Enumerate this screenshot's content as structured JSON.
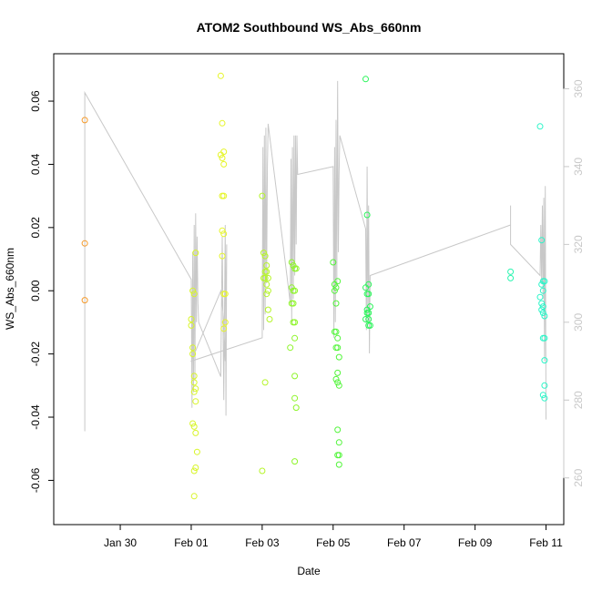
{
  "chart_data": {
    "type": "scatter",
    "title": "ATOM2 Southbound WS_Abs_660nm",
    "xlabel": "Date",
    "ylabel": "WS_Abs_660nm",
    "xlim": [
      "2023-01-28T03:00",
      "2023-02-11T12:00"
    ],
    "ylim": [
      -0.074,
      0.075
    ],
    "y2lim": [
      248,
      369
    ],
    "x_ticks": [
      {
        "date": "2023-01-30",
        "label": "Jan 30"
      },
      {
        "date": "2023-02-01",
        "label": "Feb 01"
      },
      {
        "date": "2023-02-03",
        "label": "Feb 03"
      },
      {
        "date": "2023-02-05",
        "label": "Feb 05"
      },
      {
        "date": "2023-02-07",
        "label": "Feb 07"
      },
      {
        "date": "2023-02-09",
        "label": "Feb 09"
      },
      {
        "date": "2023-02-11",
        "label": "Feb 11"
      }
    ],
    "y_ticks": [
      -0.06,
      -0.04,
      -0.02,
      0.0,
      0.02,
      0.04,
      0.06
    ],
    "y_tick_labels": [
      "-0.06",
      "-0.04",
      "-0.02",
      "0.00",
      "0.02",
      "0.04",
      "0.06"
    ],
    "y2_ticks": [
      260,
      280,
      300,
      320,
      340,
      360
    ],
    "y2_tick_labels": [
      "260",
      "280",
      "300",
      "320",
      "340",
      "360"
    ],
    "grid": false,
    "legend": "none",
    "point_series": [
      {
        "color": "#f59a2a",
        "x": [
          "2023-01-29T00:00",
          "2023-01-29T00:00",
          "2023-01-29T00:00"
        ],
        "y": [
          0.054,
          0.015,
          -0.003
        ]
      },
      {
        "color": "#d8f52a",
        "x": [
          "2023-02-01T00:00",
          "2023-02-01T00:00",
          "2023-02-01T01:00",
          "2023-02-01T01:00",
          "2023-02-01T02:00",
          "2023-02-01T02:00",
          "2023-02-01T03:00",
          "2023-02-01T02:00",
          "2023-02-01T03:00",
          "2023-02-01T01:00",
          "2023-02-01T02:00",
          "2023-02-01T03:00",
          "2023-02-01T04:00",
          "2023-02-01T03:00",
          "2023-02-01T02:00",
          "2023-02-01T02:00",
          "2023-02-01T01:00",
          "2023-02-01T02:00",
          "2023-02-01T03:00"
        ],
        "y": [
          -0.009,
          -0.011,
          -0.018,
          -0.02,
          -0.027,
          -0.029,
          -0.031,
          -0.032,
          -0.035,
          -0.042,
          -0.043,
          -0.045,
          -0.051,
          -0.056,
          -0.057,
          -0.065,
          0.0,
          -0.001,
          0.012
        ]
      },
      {
        "color": "#e6f52a",
        "x": [
          "2023-02-01T20:00",
          "2023-02-01T21:00",
          "2023-02-01T22:00",
          "2023-02-01T20:00",
          "2023-02-01T21:00",
          "2023-02-01T22:00",
          "2023-02-01T21:00",
          "2023-02-01T22:00",
          "2023-02-01T21:00",
          "2023-02-01T22:00",
          "2023-02-01T21:00",
          "2023-02-01T22:00",
          "2023-02-01T23:00",
          "2023-02-01T23:00",
          "2023-02-01T22:00"
        ],
        "y": [
          0.068,
          0.053,
          0.044,
          0.043,
          0.042,
          0.04,
          0.03,
          0.03,
          0.019,
          0.018,
          0.011,
          -0.001,
          -0.001,
          -0.01,
          -0.012
        ]
      },
      {
        "color": "#b6f52a",
        "x": [
          "2023-02-03T00:00",
          "2023-02-03T01:00",
          "2023-02-03T02:00",
          "2023-02-03T03:00",
          "2023-02-03T02:00",
          "2023-02-03T03:00",
          "2023-02-03T04:00",
          "2023-02-03T02:00",
          "2023-02-03T03:00",
          "2023-02-03T04:00",
          "2023-02-03T05:00",
          "2023-02-03T03:00",
          "2023-02-03T04:00",
          "2023-02-03T02:00",
          "2023-02-03T00:00",
          "2023-02-03T01:00"
        ],
        "y": [
          0.03,
          0.012,
          0.011,
          0.008,
          0.006,
          0.006,
          0.004,
          0.004,
          0.002,
          -0.006,
          -0.009,
          -0.001,
          0.0,
          -0.029,
          -0.057,
          0.004
        ]
      },
      {
        "color": "#8ef52a",
        "x": [
          "2023-02-03T20:00",
          "2023-02-03T21:00",
          "2023-02-03T22:00",
          "2023-02-03T23:00",
          "2023-02-03T20:00",
          "2023-02-03T21:00",
          "2023-02-03T22:00",
          "2023-02-03T20:00",
          "2023-02-03T21:00",
          "2023-02-03T22:00",
          "2023-02-03T21:00",
          "2023-02-03T22:00",
          "2023-02-03T19:00",
          "2023-02-03T22:00",
          "2023-02-03T22:00",
          "2023-02-03T23:00",
          "2023-02-03T22:00"
        ],
        "y": [
          0.009,
          0.008,
          0.007,
          0.007,
          0.001,
          0.0,
          0.0,
          -0.004,
          -0.004,
          -0.01,
          -0.01,
          -0.015,
          -0.018,
          -0.027,
          -0.034,
          -0.037,
          -0.054
        ]
      },
      {
        "color": "#52f53a",
        "x": [
          "2023-02-05T00:00",
          "2023-02-05T01:00",
          "2023-02-05T02:00",
          "2023-02-05T03:00",
          "2023-02-05T01:00",
          "2023-02-05T02:00",
          "2023-02-05T01:00",
          "2023-02-05T02:00",
          "2023-02-05T03:00",
          "2023-02-05T02:00",
          "2023-02-05T03:00",
          "2023-02-05T04:00",
          "2023-02-05T03:00",
          "2023-02-05T02:00",
          "2023-02-05T03:00",
          "2023-02-05T04:00",
          "2023-02-05T03:00",
          "2023-02-05T04:00",
          "2023-02-05T03:00",
          "2023-02-05T04:00",
          "2023-02-05T04:00"
        ],
        "y": [
          0.009,
          0.002,
          0.001,
          0.003,
          0.0,
          -0.004,
          -0.013,
          -0.013,
          -0.015,
          -0.018,
          -0.018,
          -0.021,
          -0.026,
          -0.028,
          -0.029,
          -0.03,
          -0.044,
          -0.048,
          -0.052,
          -0.055,
          -0.052
        ]
      },
      {
        "color": "#2af55a",
        "x": [
          "2023-02-05T22:00",
          "2023-02-05T23:00",
          "2023-02-06T00:00",
          "2023-02-05T22:00",
          "2023-02-05T23:00",
          "2023-02-06T00:00",
          "2023-02-06T01:00",
          "2023-02-05T23:00",
          "2023-02-06T00:00",
          "2023-02-05T23:00",
          "2023-02-06T00:00",
          "2023-02-05T22:00",
          "2023-02-06T00:00",
          "2023-02-06T01:00"
        ],
        "y": [
          0.067,
          0.024,
          0.002,
          0.001,
          -0.001,
          -0.001,
          -0.005,
          -0.006,
          -0.007,
          -0.007,
          -0.009,
          -0.009,
          -0.011,
          -0.011
        ]
      },
      {
        "color": "#2af5b0",
        "x": [
          "2023-02-10T00:00",
          "2023-02-10T00:00"
        ],
        "y": [
          0.006,
          0.004
        ]
      },
      {
        "color": "#2af5c8",
        "x": [
          "2023-02-10T20:00",
          "2023-02-10T21:00",
          "2023-02-10T22:00",
          "2023-02-10T21:00",
          "2023-02-10T22:00",
          "2023-02-10T20:00",
          "2023-02-10T21:00",
          "2023-02-10T22:00",
          "2023-02-10T21:00",
          "2023-02-10T22:00",
          "2023-02-10T23:00",
          "2023-02-10T22:00",
          "2023-02-10T23:00",
          "2023-02-10T23:00",
          "2023-02-10T22:00",
          "2023-02-10T23:00",
          "2023-02-10T23:00",
          "2023-02-10T23:00"
        ],
        "y": [
          0.052,
          0.016,
          0.003,
          0.002,
          0.0,
          -0.002,
          -0.004,
          -0.005,
          -0.006,
          -0.007,
          -0.008,
          -0.015,
          -0.022,
          -0.03,
          -0.033,
          -0.034,
          0.003,
          -0.015
        ]
      }
    ],
    "line_series": {
      "axis": "right",
      "color": "#c8c8c8",
      "x": [
        "2023-01-29T00:00",
        "2023-01-29T00:00",
        "2023-01-29T00:00",
        "2023-02-01T00:00",
        "2023-02-01T00:30",
        "2023-02-01T01:00",
        "2023-02-01T01:30",
        "2023-02-01T02:00",
        "2023-02-01T02:30",
        "2023-02-01T03:00",
        "2023-02-01T03:30",
        "2023-02-01T04:00",
        "2023-02-01T04:30",
        "2023-02-01T05:00",
        "2023-02-01T20:00",
        "2023-02-01T21:00",
        "2023-02-01T22:00",
        "2023-02-01T23:00",
        "2023-02-01T23:30",
        "2023-02-02T00:00",
        "2023-02-01T23:00",
        "2023-02-01T22:00",
        "2023-02-01T21:00",
        "2023-02-01T20:00",
        "2023-02-01T00:00",
        "2023-02-03T00:00",
        "2023-02-03T00:30",
        "2023-02-03T01:00",
        "2023-02-03T01:30",
        "2023-02-03T02:00",
        "2023-02-03T02:30",
        "2023-02-03T03:00",
        "2023-02-03T03:30",
        "2023-02-03T04:00",
        "2023-02-03T19:00",
        "2023-02-03T19:30",
        "2023-02-03T20:00",
        "2023-02-03T20:30",
        "2023-02-03T21:00",
        "2023-02-03T21:30",
        "2023-02-03T22:00",
        "2023-02-03T22:30",
        "2023-02-03T23:00",
        "2023-02-03T23:30",
        "2023-02-04T00:00",
        "2023-02-05T00:00",
        "2023-02-05T00:30",
        "2023-02-05T01:00",
        "2023-02-05T01:30",
        "2023-02-05T02:00",
        "2023-02-05T02:30",
        "2023-02-05T03:00",
        "2023-02-05T03:30",
        "2023-02-05T04:00",
        "2023-02-05T04:30",
        "2023-02-05T22:00",
        "2023-02-05T22:30",
        "2023-02-05T23:00",
        "2023-02-05T23:30",
        "2023-02-06T00:00",
        "2023-02-06T00:30",
        "2023-02-06T01:00",
        "2023-02-10T00:00",
        "2023-02-10T00:00",
        "2023-02-10T00:00",
        "2023-02-10T20:00",
        "2023-02-10T20:30",
        "2023-02-10T21:00",
        "2023-02-10T21:30",
        "2023-02-10T22:00",
        "2023-02-10T22:30",
        "2023-02-10T23:00",
        "2023-02-10T23:30",
        "2023-02-11T00:00"
      ],
      "y": [
        358,
        272,
        359,
        311,
        278,
        318,
        282,
        325,
        285,
        328,
        300,
        322,
        305,
        300,
        286,
        322,
        280,
        325,
        276,
        320,
        290,
        300,
        305,
        308,
        290,
        296,
        345,
        298,
        348,
        302,
        350,
        310,
        340,
        351,
        305,
        342,
        300,
        345,
        306,
        348,
        312,
        348,
        320,
        348,
        338,
        340,
        296,
        345,
        300,
        352,
        310,
        362,
        318,
        338,
        348,
        324,
        298,
        340,
        300,
        330,
        292,
        312,
        325,
        330,
        320,
        312,
        325,
        310,
        330,
        306,
        332,
        290,
        335,
        275
      ]
    }
  }
}
